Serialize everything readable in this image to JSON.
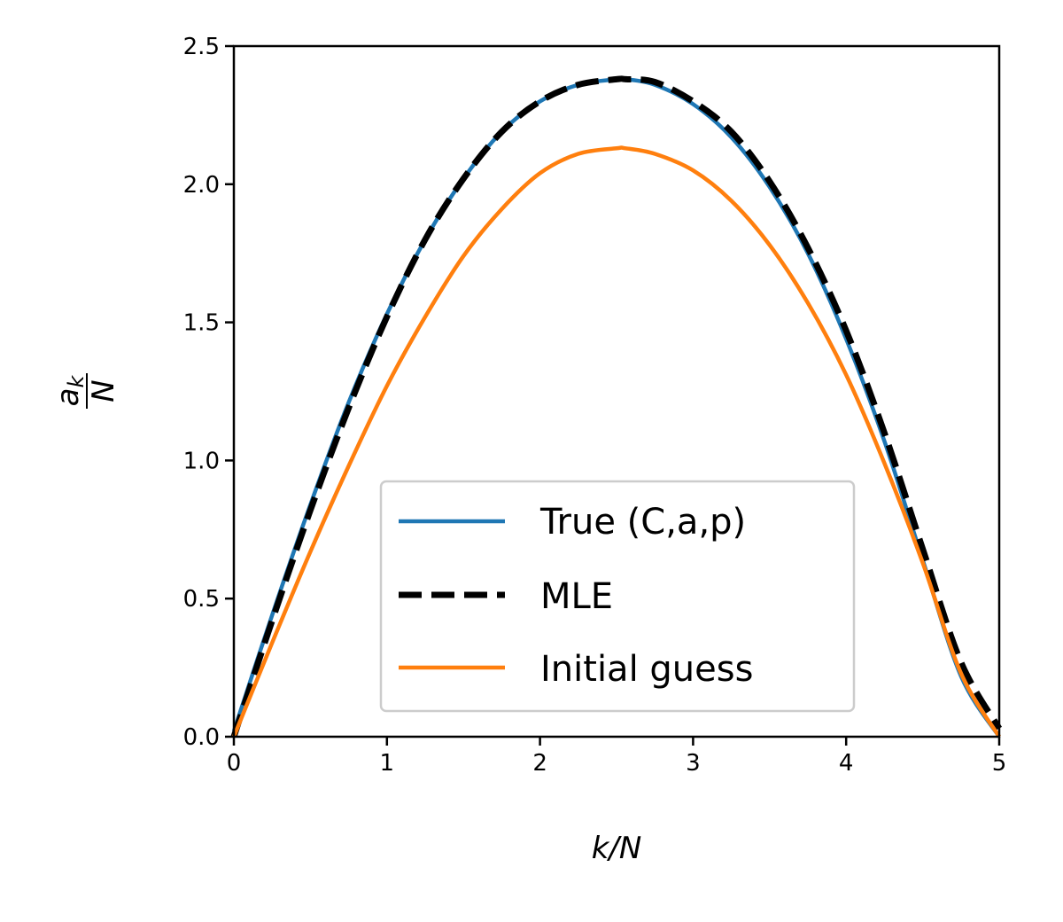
{
  "chart_data": {
    "type": "line",
    "xlabel": "k/N",
    "ylabel_numerator": "a_k",
    "ylabel_denominator": "N",
    "xlim": [
      0,
      5
    ],
    "ylim": [
      0,
      2.5
    ],
    "xticks": [
      "0",
      "1",
      "2",
      "3",
      "4",
      "5"
    ],
    "yticks": [
      "0.0",
      "0.5",
      "1.0",
      "1.5",
      "2.0",
      "2.5"
    ],
    "grid": false,
    "legend_position": "lower-center",
    "x": [
      0,
      0.25,
      0.5,
      0.75,
      1.0,
      1.25,
      1.5,
      1.75,
      2.0,
      2.25,
      2.5,
      2.56,
      2.75,
      3.0,
      3.25,
      3.5,
      3.75,
      4.0,
      4.25,
      4.5,
      4.75,
      5.0
    ],
    "series": [
      {
        "name": "True (C,a,p)",
        "color": "#1f77b4",
        "style": "solid",
        "values": [
          0.02,
          0.44,
          0.84,
          1.21,
          1.53,
          1.8,
          2.02,
          2.19,
          2.3,
          2.36,
          2.38,
          2.38,
          2.36,
          2.29,
          2.17,
          1.99,
          1.75,
          1.44,
          1.07,
          0.64,
          0.22,
          0.0
        ]
      },
      {
        "name": "MLE",
        "color": "#000000",
        "style": "dashed",
        "values": [
          0.0,
          0.42,
          0.82,
          1.19,
          1.52,
          1.8,
          2.02,
          2.19,
          2.3,
          2.36,
          2.38,
          2.38,
          2.37,
          2.3,
          2.19,
          2.01,
          1.77,
          1.47,
          1.1,
          0.68,
          0.27,
          0.03
        ]
      },
      {
        "name": "Initial guess",
        "color": "#ff7f0e",
        "style": "solid",
        "values": [
          0.0,
          0.34,
          0.67,
          0.98,
          1.27,
          1.52,
          1.74,
          1.91,
          2.04,
          2.11,
          2.13,
          2.13,
          2.11,
          2.05,
          1.94,
          1.78,
          1.57,
          1.31,
          0.99,
          0.63,
          0.23,
          0.0
        ]
      }
    ]
  }
}
